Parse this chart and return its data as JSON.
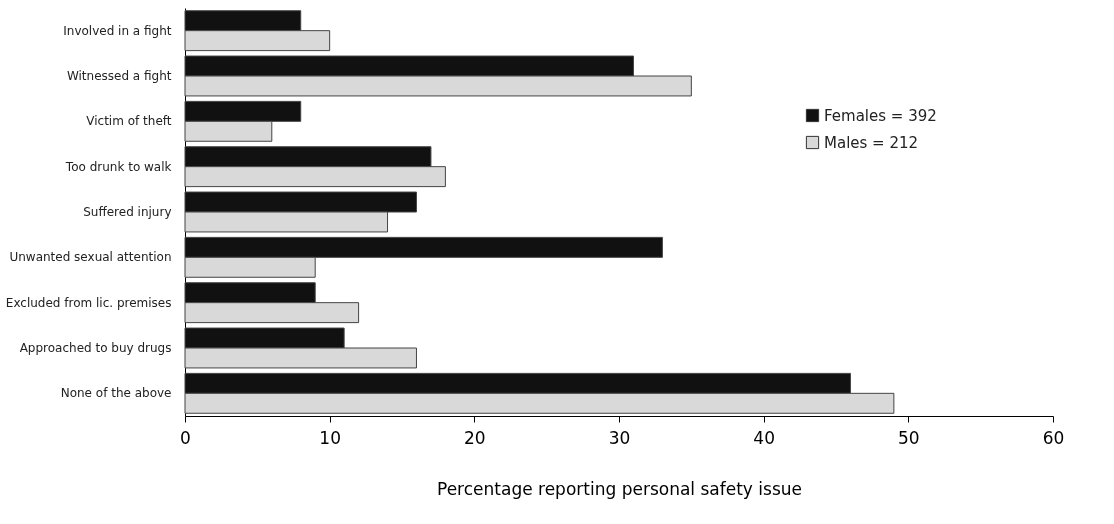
{
  "chart_data": {
    "type": "bar",
    "orientation": "horizontal",
    "xlabel": "Percentage reporting personal safety issue",
    "categories": [
      "Involved in a fight",
      "Witnessed a fight",
      "Victim of theft",
      "Too drunk to walk",
      "Suffered injury",
      "Unwanted sexual attention",
      "Excluded from lic. premises",
      "Approached to buy drugs",
      "None of the above"
    ],
    "series": [
      {
        "name": "Females = 392",
        "color": "#111111",
        "values": [
          8,
          31,
          8,
          17,
          16,
          33,
          9,
          11,
          46
        ]
      },
      {
        "name": "Males = 212",
        "color": "#d9d9d9",
        "values": [
          10,
          35,
          6,
          18,
          14,
          9,
          12,
          16,
          49
        ]
      }
    ],
    "xlim": [
      0,
      60
    ],
    "xticks": [
      0,
      10,
      20,
      30,
      40,
      50,
      60
    ],
    "grid": false,
    "legend": "top right"
  }
}
